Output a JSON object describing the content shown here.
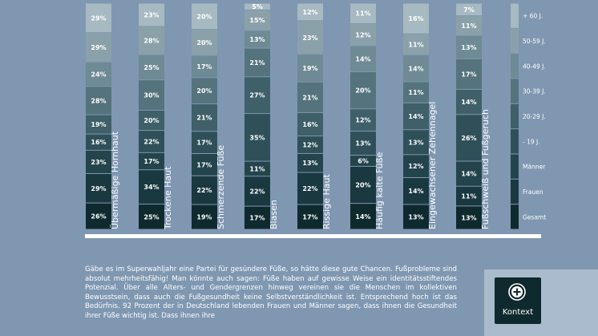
{
  "chart_data": {
    "type": "bar",
    "stacked": true,
    "percent_stacked": true,
    "categories": [
      "Übermäßige Hornhaut",
      "Trockene Haut",
      "Schmerzende Füße",
      "Blasen",
      "Rissige Haut",
      "Häufig kalte Füße",
      "Eingewachsener Zehennagel",
      "Fußschweiß und Fußgeruch"
    ],
    "series": [
      {
        "name": "Gesamt",
        "values": [
          26,
          25,
          19,
          17,
          17,
          14,
          13,
          13
        ]
      },
      {
        "name": "Frauen",
        "values": [
          29,
          34,
          22,
          22,
          22,
          20,
          14,
          11
        ]
      },
      {
        "name": "Männer",
        "values": [
          23,
          17,
          17,
          11,
          13,
          6,
          12,
          14
        ]
      },
      {
        "name": "- 19 J.",
        "values": [
          16,
          22,
          17,
          35,
          12,
          13,
          13,
          26
        ]
      },
      {
        "name": "20-29 J.",
        "values": [
          19,
          20,
          21,
          27,
          16,
          12,
          14,
          14
        ]
      },
      {
        "name": "30-39 J.",
        "values": [
          28,
          30,
          20,
          21,
          21,
          20,
          11,
          17
        ]
      },
      {
        "name": "40-49 J.",
        "values": [
          24,
          25,
          17,
          13,
          19,
          14,
          14,
          13
        ]
      },
      {
        "name": "50-59 J.",
        "values": [
          29,
          28,
          20,
          15,
          23,
          12,
          11,
          11
        ]
      },
      {
        "name": "+ 60 J.",
        "values": [
          29,
          23,
          20,
          5,
          12,
          11,
          16,
          7
        ]
      }
    ],
    "value_suffix": "%",
    "legend_placement": "right",
    "grid": false,
    "colors": [
      "#0f2a2e",
      "#1a3840",
      "#24444c",
      "#2f5059",
      "#3f5f69",
      "#55737d",
      "#6e8a94",
      "#8ba1aa",
      "#a7b9c1"
    ]
  },
  "body_text": "Gäbe es im Superwahljahr eine Partei für gesündere Füße, so hätte diese gute Chancen. Fußprobleme sind absolut mehrheitsfähig! Man könnte auch sagen: Füße haben auf gewisse Weise ein identitätsstiftendes Potenzial. Über alle Alters- und Gendergrenzen hinweg vereinen sie die Menschen im kollektiven Bewusstsein, dass auch die Fußgesundheit keine Selbstverständlichkeit ist. Entsprechend hoch ist das Bedürfnis. 92 Prozent der in Deutschland lebenden Frauen und Männer sagen, dass ihnen die Gesundheit ihrer Füße wichtig ist. Dass ihnen ihre",
  "context_button": {
    "label": "Kontext",
    "icon": "plus-circle-icon"
  }
}
